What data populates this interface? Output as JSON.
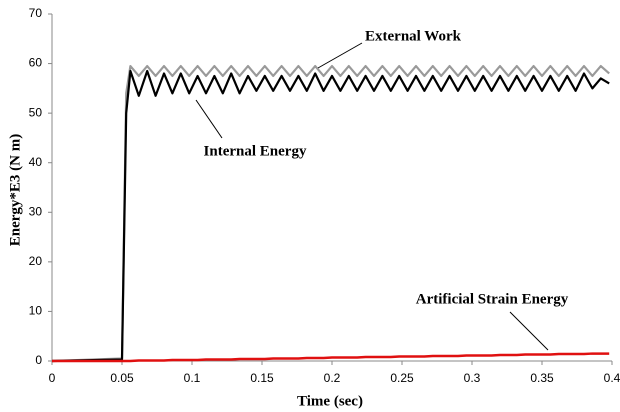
{
  "chart_data": {
    "type": "line",
    "xlabel": "Time (sec)",
    "ylabel": "Energy*E3 (N m)",
    "x": [
      0,
      0.05,
      0.053,
      0.056,
      0.062,
      0.068,
      0.074,
      0.08,
      0.086,
      0.092,
      0.098,
      0.104,
      0.11,
      0.116,
      0.122,
      0.128,
      0.134,
      0.14,
      0.146,
      0.152,
      0.158,
      0.164,
      0.17,
      0.176,
      0.182,
      0.188,
      0.194,
      0.2,
      0.206,
      0.212,
      0.218,
      0.224,
      0.23,
      0.236,
      0.242,
      0.248,
      0.254,
      0.26,
      0.266,
      0.272,
      0.278,
      0.284,
      0.29,
      0.296,
      0.302,
      0.308,
      0.314,
      0.32,
      0.326,
      0.332,
      0.338,
      0.344,
      0.35,
      0.356,
      0.362,
      0.368,
      0.374,
      0.38,
      0.386,
      0.392,
      0.398
    ],
    "series": [
      {
        "name": "External Work",
        "color": "#9a9a9a",
        "values": [
          0,
          0.5,
          54,
          59.5,
          57.5,
          59.5,
          57.5,
          59.5,
          57.5,
          59.5,
          57.5,
          59.5,
          57.5,
          59.5,
          57.5,
          59.5,
          57.5,
          59.5,
          57.5,
          59.5,
          57.5,
          59.5,
          57.5,
          59.5,
          57.5,
          59.5,
          57.5,
          59.5,
          57.5,
          59.5,
          57.5,
          59.5,
          57.5,
          59.5,
          57.5,
          59.5,
          57.5,
          59.5,
          57.5,
          59.5,
          57.5,
          59.5,
          57.5,
          59.5,
          57.5,
          59.5,
          57.5,
          59.5,
          57.5,
          59.5,
          57.5,
          59.5,
          57.5,
          59.5,
          57.5,
          59.5,
          57.5,
          59.5,
          57.5,
          59.5,
          58
        ]
      },
      {
        "name": "Internal Energy",
        "color": "#000000",
        "values": [
          0,
          0.3,
          50,
          58.5,
          53.5,
          58.5,
          53.5,
          58,
          54,
          58,
          54,
          57.5,
          54,
          57.5,
          54,
          58,
          54,
          57.5,
          54.5,
          57.5,
          54.5,
          57.5,
          54.5,
          57.5,
          54.5,
          58,
          54.5,
          57.5,
          54.5,
          57.5,
          54.5,
          57.5,
          54.5,
          57.5,
          54.5,
          57.5,
          54.5,
          57.5,
          54.5,
          57.5,
          54.5,
          57.5,
          54.5,
          57.5,
          54.5,
          57.5,
          54.5,
          57.5,
          54.5,
          57.5,
          54.5,
          57.5,
          54.5,
          57.5,
          54.5,
          57.5,
          54.5,
          58,
          55,
          57,
          56
        ]
      },
      {
        "name": "Artificial Strain Energy",
        "color": "#e01010",
        "values": [
          0,
          0,
          0,
          0,
          0.1,
          0.1,
          0.1,
          0.1,
          0.2,
          0.2,
          0.2,
          0.2,
          0.3,
          0.3,
          0.3,
          0.3,
          0.4,
          0.4,
          0.4,
          0.4,
          0.5,
          0.5,
          0.5,
          0.5,
          0.6,
          0.6,
          0.6,
          0.7,
          0.7,
          0.7,
          0.7,
          0.8,
          0.8,
          0.8,
          0.8,
          0.9,
          0.9,
          0.9,
          0.9,
          1.0,
          1.0,
          1.0,
          1.0,
          1.1,
          1.1,
          1.1,
          1.1,
          1.2,
          1.2,
          1.2,
          1.3,
          1.3,
          1.3,
          1.3,
          1.4,
          1.4,
          1.4,
          1.4,
          1.5,
          1.5,
          1.5
        ]
      }
    ],
    "xlim": [
      0,
      0.4
    ],
    "xticks": [
      0,
      0.05,
      0.1,
      0.15,
      0.2,
      0.25,
      0.3,
      0.35,
      0.4
    ],
    "ylim": [
      0,
      70
    ],
    "yticks": [
      0,
      10,
      20,
      30,
      40,
      50,
      60,
      70
    ]
  }
}
